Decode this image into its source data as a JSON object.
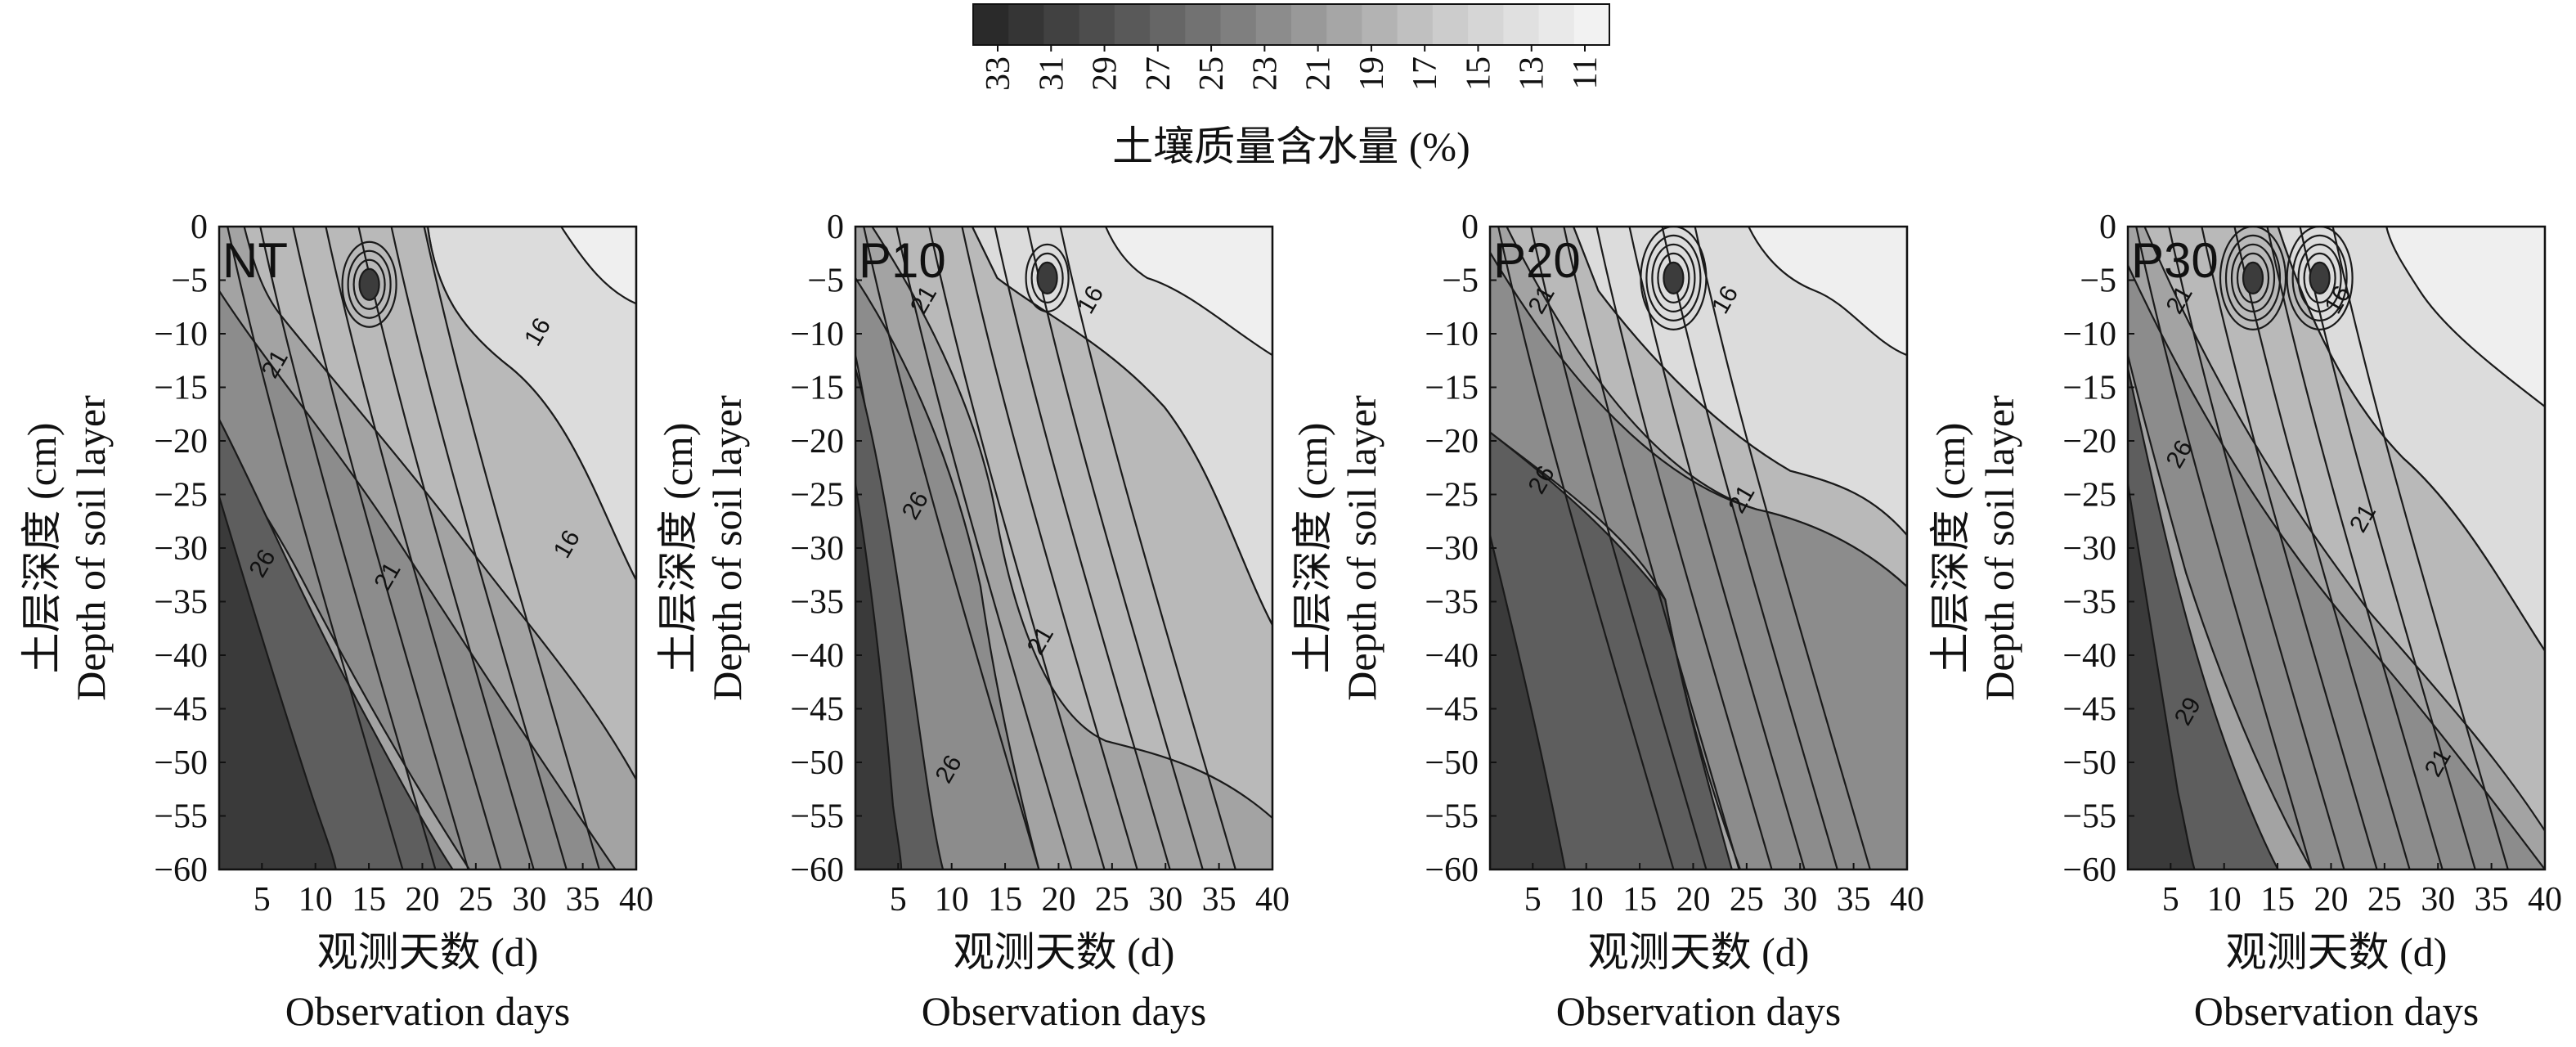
{
  "chart_data": [
    {
      "type": "heatmap",
      "panel": "NT",
      "x_ticks": [
        5,
        10,
        15,
        20,
        25,
        30,
        35,
        40
      ],
      "y_ticks": [
        0,
        -5,
        -10,
        -15,
        -20,
        -25,
        -30,
        -35,
        -40,
        -45,
        -50,
        -55,
        -60
      ],
      "xlim": [
        1,
        40
      ],
      "ylim": [
        -60,
        0
      ],
      "xlabel_cn": "观测天数 (d)",
      "xlabel_en": "Observation days",
      "ylabel_cn": "土层深度 (cm)",
      "ylabel_en": "Depth of soil layer",
      "contour_labels": [
        "16",
        "21",
        "26",
        "21",
        "16"
      ],
      "grid": false
    },
    {
      "type": "heatmap",
      "panel": "P10",
      "x_ticks": [
        5,
        10,
        15,
        20,
        25,
        30,
        35,
        40
      ],
      "y_ticks": [
        0,
        -5,
        -10,
        -15,
        -20,
        -25,
        -30,
        -35,
        -40,
        -45,
        -50,
        -55,
        -60
      ],
      "xlim": [
        1,
        40
      ],
      "ylim": [
        -60,
        0
      ],
      "xlabel_cn": "观测天数 (d)",
      "xlabel_en": "Observation days",
      "ylabel_cn": "土层深度 (cm)",
      "ylabel_en": "Depth of soil layer",
      "contour_labels": [
        "21",
        "16",
        "26",
        "21",
        "26"
      ],
      "grid": false
    },
    {
      "type": "heatmap",
      "panel": "P20",
      "x_ticks": [
        5,
        10,
        15,
        20,
        25,
        30,
        35,
        40
      ],
      "y_ticks": [
        0,
        -5,
        -10,
        -15,
        -20,
        -25,
        -30,
        -35,
        -40,
        -45,
        -50,
        -55,
        -60
      ],
      "xlim": [
        1,
        40
      ],
      "ylim": [
        -60,
        0
      ],
      "xlabel_cn": "观测天数 (d)",
      "xlabel_en": "Observation days",
      "ylabel_cn": "土层深度 (cm)",
      "ylabel_en": "Depth of soil layer",
      "contour_labels": [
        "21",
        "16",
        "26",
        "21"
      ],
      "grid": false
    },
    {
      "type": "heatmap",
      "panel": "P30",
      "x_ticks": [
        5,
        10,
        15,
        20,
        25,
        30,
        35,
        40
      ],
      "y_ticks": [
        0,
        -5,
        -10,
        -15,
        -20,
        -25,
        -30,
        -35,
        -40,
        -45,
        -50,
        -55,
        -60
      ],
      "xlim": [
        1,
        40
      ],
      "ylim": [
        -60,
        0
      ],
      "xlabel_cn": "观测天数 (d)",
      "xlabel_en": "Observation days",
      "ylabel_cn": "土层深度 (cm)",
      "ylabel_en": "Depth of soil layer",
      "contour_labels": [
        "21",
        "16",
        "26",
        "21",
        "29",
        "21"
      ],
      "grid": false
    }
  ],
  "colorbar": {
    "title": "土壤质量含水量 (%)",
    "tick_labels": [
      "33",
      "31",
      "29",
      "27",
      "25",
      "23",
      "21",
      "19",
      "17",
      "15",
      "13",
      "11"
    ],
    "value_range": [
      33,
      11
    ],
    "colors": [
      "#2a2a2a",
      "#353535",
      "#414141",
      "#4d4d4d",
      "#595959",
      "#666666",
      "#727272",
      "#7f7f7f",
      "#8c8c8c",
      "#999999",
      "#a6a6a6",
      "#b3b3b3",
      "#c0c0c0",
      "#cccccc",
      "#d6d6d6",
      "#e0e0e0",
      "#e9e9e9",
      "#f2f2f2"
    ]
  }
}
